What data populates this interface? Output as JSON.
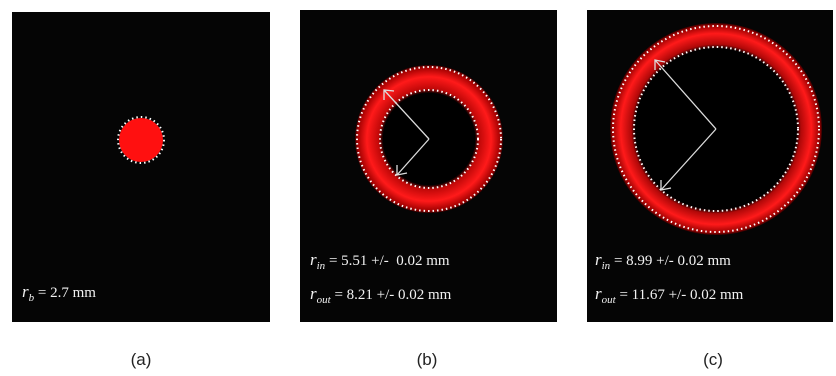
{
  "panels": [
    {
      "caption": "(a)",
      "lines": [
        {
          "symbol": "r",
          "sub": "b",
          "text": "= 2.7 mm"
        }
      ]
    },
    {
      "caption": "(b)",
      "lines": [
        {
          "symbol": "r",
          "sub": "in",
          "text": "= 5.51 +/-  0.02 mm"
        },
        {
          "symbol": "r",
          "sub": "out",
          "text": "= 8.21 +/- 0.02 mm"
        }
      ]
    },
    {
      "caption": "(c)",
      "lines": [
        {
          "symbol": "r",
          "sub": "in",
          "text": "= 8.99 +/- 0.02 mm"
        },
        {
          "symbol": "r",
          "sub": "out",
          "text": "= 11.67 +/- 0.02 mm"
        }
      ]
    }
  ]
}
